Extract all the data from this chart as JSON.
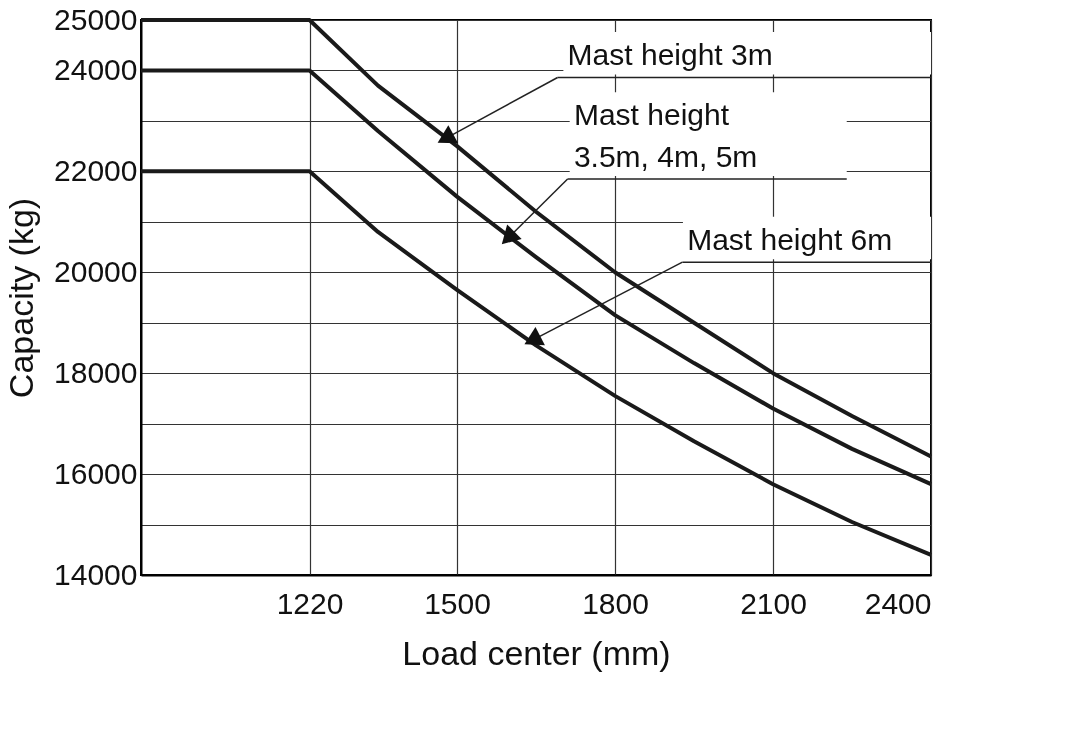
{
  "chart_data": {
    "type": "line",
    "xlabel": "Load center (mm)",
    "ylabel": "Capacity (kg)",
    "x": [
      900,
      1220,
      1350,
      1500,
      1650,
      1800,
      1950,
      2100,
      2250,
      2400
    ],
    "series": [
      {
        "color": "#1a1a1a",
        "values": [
          25000,
          25000,
          23700,
          22500,
          21200,
          20000,
          19000,
          18000,
          17150,
          16350
        ]
      },
      {
        "color": "#1a1a1a",
        "values": [
          24000,
          24000,
          22800,
          21500,
          20300,
          19150,
          18200,
          17300,
          16500,
          15800
        ]
      },
      {
        "color": "#1a1a1a",
        "values": [
          22000,
          22000,
          20800,
          19650,
          18550,
          17550,
          16650,
          15800,
          15050,
          14400
        ]
      }
    ],
    "xlim": [
      900,
      2400
    ],
    "xticks": [
      1220,
      1500,
      1800,
      2100,
      2400
    ],
    "ylim": [
      14000,
      25000
    ],
    "yticks": [
      14000,
      {
        "value": 15000,
        "label": null
      },
      16000,
      {
        "value": 17000,
        "label": null
      },
      18000,
      {
        "value": 19000,
        "label": null
      },
      20000,
      {
        "value": 21000,
        "label": null
      },
      22000,
      {
        "value": 23000,
        "label": null
      },
      24000,
      25000
    ],
    "annotations": [
      {
        "text": "Mast height 3m",
        "x": 1483,
        "y": 22680
      },
      {
        "text": "Mast height\n3.5m, 4m, 5m",
        "x": 1601,
        "y": 20720
      },
      {
        "text": "Mast height 6m",
        "x": 1648,
        "y": 18680
      }
    ],
    "grid": true,
    "marker": "none",
    "line_style": "solid"
  }
}
